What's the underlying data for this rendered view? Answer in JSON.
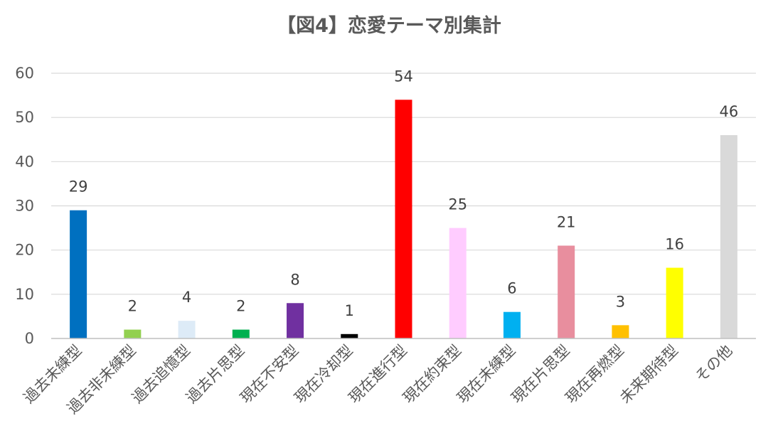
{
  "chart_data": {
    "type": "bar",
    "title": "【図4】恋愛テーマ別集計",
    "xlabel": "",
    "ylabel": "",
    "ylim": [
      0,
      60
    ],
    "yticks": [
      0,
      10,
      20,
      30,
      40,
      50,
      60
    ],
    "grid": true,
    "legend": "none",
    "categories": [
      "過去未練型",
      "過去非未練型",
      "過去追憶型",
      "過去片思型",
      "現在不安型",
      "現在冷却型",
      "現在進行型",
      "現在約束型",
      "現在未練型",
      "現在片思型",
      "現在再燃型",
      "未来期待型",
      "その他"
    ],
    "values": [
      29,
      2,
      4,
      2,
      8,
      1,
      54,
      25,
      6,
      21,
      3,
      16,
      46
    ],
    "colors": [
      "#0070C0",
      "#92D050",
      "#DDEBF7",
      "#00B050",
      "#7030A0",
      "#000000",
      "#FF0000",
      "#FFCCFF",
      "#00B0F0",
      "#E88E9E",
      "#FFC000",
      "#FFFF00",
      "#D9D9D9"
    ]
  }
}
